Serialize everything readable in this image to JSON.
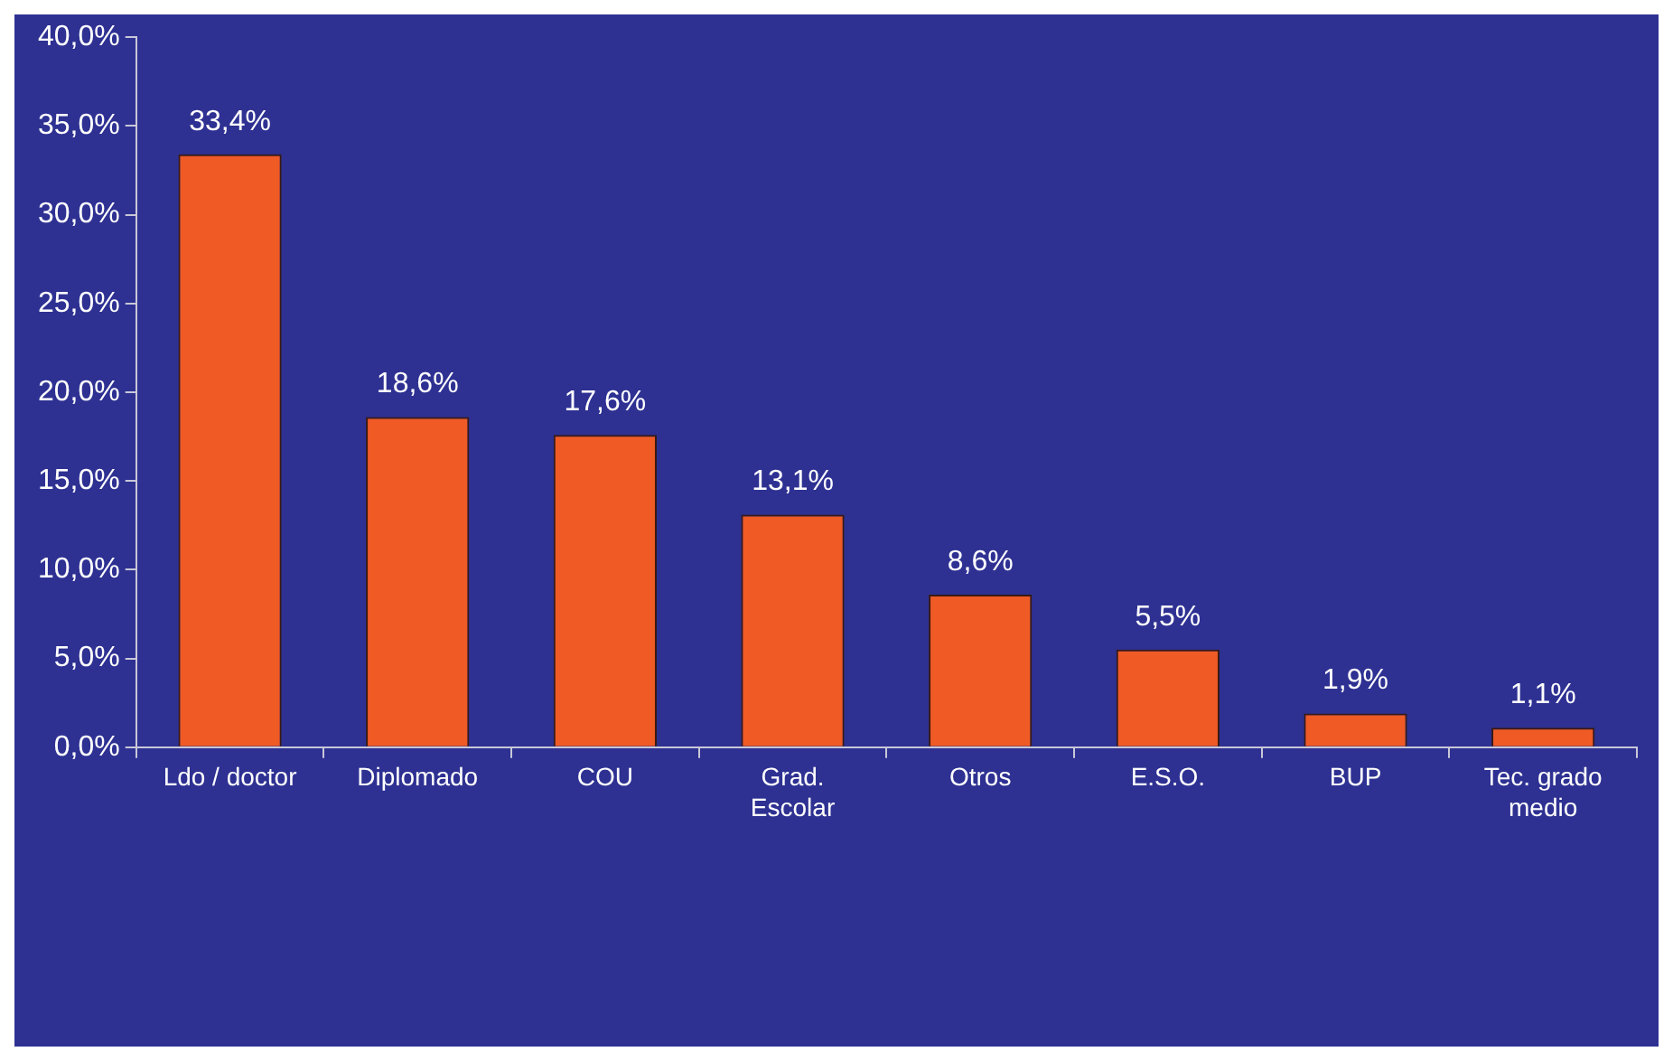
{
  "chart_data": {
    "type": "bar",
    "categories": [
      "Ldo / doctor",
      "Diplomado",
      "COU",
      "Grad.\nEscolar",
      "Otros",
      "E.S.O.",
      "BUP",
      "Tec. grado\nmedio"
    ],
    "values": [
      33.4,
      18.6,
      17.6,
      13.1,
      8.6,
      5.5,
      1.9,
      1.1
    ],
    "value_labels": [
      "33,4%",
      "18,6%",
      "17,6%",
      "13,1%",
      "8,6%",
      "5,5%",
      "1,9%",
      "1,1%"
    ],
    "color": "#f05a24",
    "ylim": [
      0,
      40
    ],
    "yticks": [
      {
        "value": 0,
        "label": "0,0%"
      },
      {
        "value": 5,
        "label": "5,0%"
      },
      {
        "value": 10,
        "label": "10,0%"
      },
      {
        "value": 15,
        "label": "15,0%"
      },
      {
        "value": 20,
        "label": "20,0%"
      },
      {
        "value": 25,
        "label": "25,0%"
      },
      {
        "value": 30,
        "label": "30,0%"
      },
      {
        "value": 35,
        "label": "35,0%"
      },
      {
        "value": 40,
        "label": "40,0%"
      }
    ],
    "grid": false,
    "legend": false
  }
}
